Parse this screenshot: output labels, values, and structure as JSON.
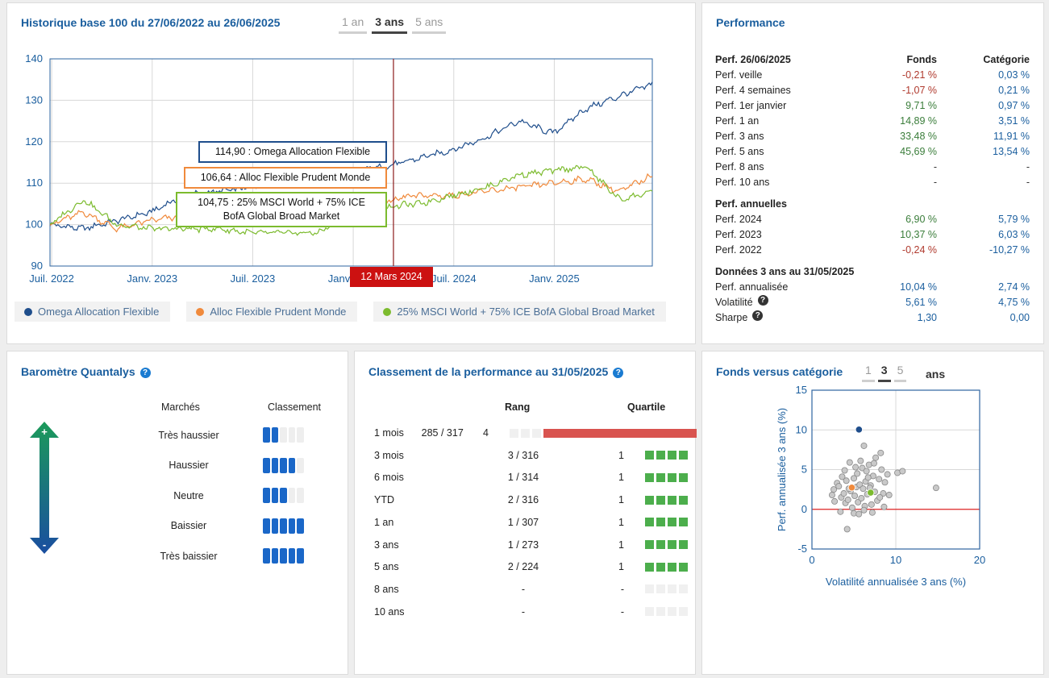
{
  "history": {
    "title": "Historique base 100 du 27/06/2022 au 26/06/2025",
    "tabs": [
      {
        "label": "1 an"
      },
      {
        "label": "3 ans",
        "active": true
      },
      {
        "label": "5 ans"
      }
    ],
    "y_ticks": [
      "140",
      "130",
      "120",
      "110",
      "100",
      "90"
    ],
    "x_ticks": [
      "Juil. 2022",
      "Janv. 2023",
      "Juil. 2023",
      "Janv. 2024",
      "Juil. 2024",
      "Janv. 2025"
    ],
    "cursor_date": "12 Mars 2024",
    "tooltips": {
      "fund": "114,90 : Omega Allocation Flexible",
      "category": "106,64 : Alloc Flexible Prudent Monde",
      "index_line1": "104,75 : 25% MSCI World + 75% ICE",
      "index_line2": "BofA Global Broad Market"
    },
    "legend": [
      {
        "label": "Omega Allocation Flexible",
        "color": "#1f4e8c"
      },
      {
        "label": "Alloc Flexible Prudent Monde",
        "color": "#f08a3c"
      },
      {
        "label": "25% MSCI World + 75% ICE BofA Global Broad Market",
        "color": "#7cbb2e"
      }
    ]
  },
  "chart_data": [
    {
      "type": "line",
      "title": "Historique base 100 du 27/06/2022 au 26/06/2025",
      "ylim": [
        90,
        140
      ],
      "x": [
        "2022-06",
        "2022-08",
        "2022-10",
        "2022-12",
        "2023-02",
        "2023-04",
        "2023-06",
        "2023-08",
        "2023-10",
        "2023-12",
        "2024-02",
        "2024-03",
        "2024-04",
        "2024-06",
        "2024-08",
        "2024-10",
        "2024-12",
        "2025-02",
        "2025-04",
        "2025-06"
      ],
      "series": [
        {
          "name": "Omega Allocation Flexible",
          "color": "#1f4e8c",
          "values": [
            100,
            99,
            101,
            103,
            107,
            108,
            109,
            110,
            111,
            113,
            114,
            114.9,
            116,
            118,
            121,
            125,
            122,
            128,
            131,
            134
          ]
        },
        {
          "name": "Alloc Flexible Prudent Monde",
          "color": "#f08a3c",
          "values": [
            100,
            103,
            99,
            101,
            102,
            101,
            102,
            101,
            101,
            104,
            105,
            106.6,
            107,
            107,
            108,
            109,
            110,
            111,
            108,
            112
          ]
        },
        {
          "name": "25% MSCI World + 75% ICE BofA Global Broad Market",
          "color": "#7cbb2e",
          "values": [
            100,
            106,
            100,
            99,
            99,
            99,
            98,
            98,
            98,
            103,
            104,
            104.75,
            105,
            107,
            109,
            112,
            113,
            114,
            106,
            108
          ]
        }
      ]
    },
    {
      "type": "scatter",
      "title": "Fonds versus catégorie",
      "xlabel": "Volatilité annualisée 3 ans (%)",
      "ylabel": "Perf. annualisée 3 ans (%)",
      "xlim": [
        0,
        20
      ],
      "ylim": [
        -5,
        15
      ],
      "x_ticks": [
        "0",
        "10",
        "20"
      ],
      "y_ticks": [
        "15",
        "10",
        "5",
        "0",
        "-5"
      ],
      "highlight": [
        {
          "name": "fund",
          "x": 5.61,
          "y": 10.04,
          "color": "#1f4e8c"
        },
        {
          "name": "category",
          "x": 4.75,
          "y": 2.74,
          "color": "#f08a3c"
        },
        {
          "name": "index",
          "x": 7.0,
          "y": 2.1,
          "color": "#7cbb2e"
        }
      ],
      "points": [
        [
          2.4,
          1.8
        ],
        [
          2.6,
          2.5
        ],
        [
          3.0,
          3.3
        ],
        [
          3.2,
          2.9
        ],
        [
          3.5,
          1.5
        ],
        [
          3.6,
          4.1
        ],
        [
          3.8,
          2.0
        ],
        [
          4.0,
          0.8
        ],
        [
          4.1,
          3.6
        ],
        [
          4.3,
          1.2
        ],
        [
          4.5,
          5.9
        ],
        [
          4.6,
          2.3
        ],
        [
          4.8,
          0.2
        ],
        [
          5.0,
          3.9
        ],
        [
          5.1,
          1.7
        ],
        [
          5.3,
          2.8
        ],
        [
          5.4,
          4.5
        ],
        [
          5.5,
          0.9
        ],
        [
          5.7,
          3.1
        ],
        [
          5.8,
          6.1
        ],
        [
          5.9,
          1.4
        ],
        [
          6.0,
          5.2
        ],
        [
          6.1,
          2.6
        ],
        [
          6.2,
          8.0
        ],
        [
          6.3,
          0.4
        ],
        [
          6.4,
          3.5
        ],
        [
          6.5,
          4.8
        ],
        [
          6.6,
          1.9
        ],
        [
          6.8,
          5.6
        ],
        [
          7.0,
          3.0
        ],
        [
          7.1,
          0.6
        ],
        [
          7.3,
          4.2
        ],
        [
          7.5,
          2.2
        ],
        [
          7.6,
          6.5
        ],
        [
          7.8,
          1.1
        ],
        [
          8.0,
          3.8
        ],
        [
          8.2,
          7.1
        ],
        [
          8.3,
          5.0
        ],
        [
          8.5,
          2.0
        ],
        [
          8.7,
          3.4
        ],
        [
          9.0,
          4.4
        ],
        [
          9.2,
          1.8
        ],
        [
          10.2,
          4.6
        ],
        [
          10.8,
          4.8
        ],
        [
          14.8,
          2.7
        ],
        [
          3.4,
          -0.3
        ],
        [
          4.2,
          -2.5
        ],
        [
          5.0,
          -0.5
        ],
        [
          5.6,
          -0.6
        ],
        [
          6.2,
          -0.1
        ],
        [
          7.2,
          -0.4
        ],
        [
          8.6,
          0.3
        ],
        [
          2.7,
          1.0
        ],
        [
          3.9,
          4.9
        ],
        [
          4.4,
          2.6
        ],
        [
          5.2,
          5.3
        ],
        [
          6.7,
          4.0
        ],
        [
          7.4,
          5.8
        ],
        [
          8.1,
          1.5
        ],
        [
          6.9,
          2.7
        ]
      ]
    }
  ],
  "performance": {
    "title": "Performance",
    "header": {
      "label": "Perf. 26/06/2025",
      "fonds": "Fonds",
      "categorie": "Catégorie"
    },
    "rows": [
      {
        "label": "Perf. veille",
        "fonds": "-0,21 %",
        "cat": "0,03 %"
      },
      {
        "label": "Perf. 4 semaines",
        "fonds": "-1,07 %",
        "cat": "0,21 %"
      },
      {
        "label": "Perf. 1er janvier",
        "fonds": "9,71 %",
        "cat": "0,97 %"
      },
      {
        "label": "Perf. 1 an",
        "fonds": "14,89 %",
        "cat": "3,51 %"
      },
      {
        "label": "Perf. 3 ans",
        "fonds": "33,48 %",
        "cat": "11,91 %"
      },
      {
        "label": "Perf. 5 ans",
        "fonds": "45,69 %",
        "cat": "13,54 %"
      },
      {
        "label": "Perf. 8 ans",
        "fonds": "-",
        "cat": "-"
      },
      {
        "label": "Perf. 10 ans",
        "fonds": "-",
        "cat": "-"
      }
    ],
    "annual_title": "Perf. annuelles",
    "annual": [
      {
        "label": "Perf. 2024",
        "fonds": "6,90 %",
        "cat": "5,79 %"
      },
      {
        "label": "Perf. 2023",
        "fonds": "10,37 %",
        "cat": "6,03 %"
      },
      {
        "label": "Perf. 2022",
        "fonds": "-0,24 %",
        "cat": "-10,27 %"
      }
    ],
    "risk_title": "Données 3 ans au 31/05/2025",
    "risk": [
      {
        "label": "Perf. annualisée",
        "fonds": "10,04 %",
        "cat": "2,74 %"
      },
      {
        "label": "Volatilité",
        "fonds": "5,61 %",
        "cat": "4,75 %"
      },
      {
        "label": "Sharpe",
        "fonds": "1,30",
        "cat": "0,00"
      }
    ]
  },
  "barometre": {
    "title": "Baromètre Quantalys",
    "col_markets": "Marchés",
    "col_rank": "Classement",
    "top_symbol": "+",
    "bottom_symbol": "-",
    "rows": [
      {
        "label": "Très haussier",
        "filled": 2
      },
      {
        "label": "Haussier",
        "filled": 4
      },
      {
        "label": "Neutre",
        "filled": 3
      },
      {
        "label": "Baissier",
        "filled": 5
      },
      {
        "label": "Très baissier",
        "filled": 5
      }
    ]
  },
  "classement": {
    "title": "Classement de la performance au 31/05/2025",
    "col_rang": "Rang",
    "col_quartile": "Quartile",
    "rows": [
      {
        "period": "1 mois",
        "rang": "285 / 317",
        "quartile": "4"
      },
      {
        "period": "3 mois",
        "rang": "3 / 316",
        "quartile": "1"
      },
      {
        "period": "6 mois",
        "rang": "1 / 314",
        "quartile": "1"
      },
      {
        "period": "YTD",
        "rang": "2 / 316",
        "quartile": "1"
      },
      {
        "period": "1 an",
        "rang": "1 / 307",
        "quartile": "1"
      },
      {
        "period": "3 ans",
        "rang": "1 / 273",
        "quartile": "1"
      },
      {
        "period": "5 ans",
        "rang": "2 / 224",
        "quartile": "1"
      },
      {
        "period": "8 ans",
        "rang": "-",
        "quartile": "-"
      },
      {
        "period": "10 ans",
        "rang": "-",
        "quartile": "-"
      }
    ]
  },
  "versus": {
    "title": "Fonds versus catégorie",
    "tabs": [
      {
        "label": "1"
      },
      {
        "label": "3",
        "active": true
      },
      {
        "label": "5"
      }
    ],
    "suffix": "ans"
  }
}
